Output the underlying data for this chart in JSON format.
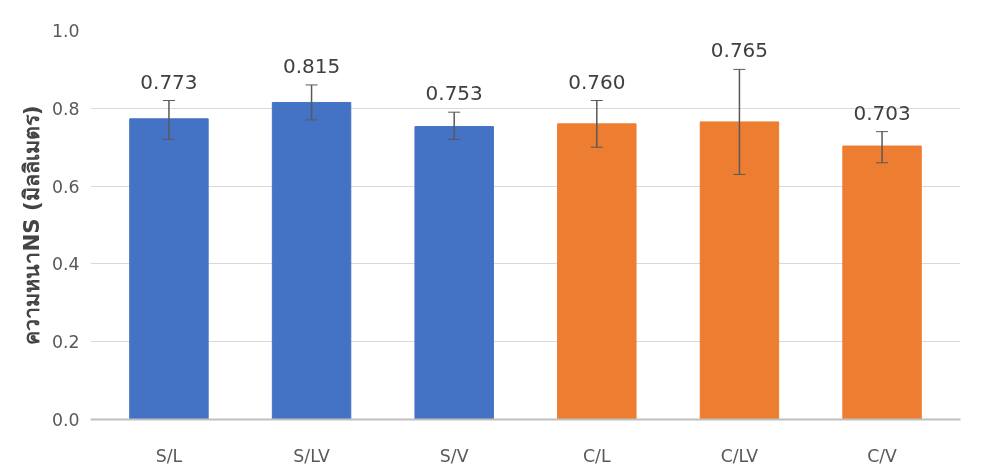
{
  "chart_data": {
    "type": "bar",
    "ylabel": "ความหนาNS (มิลลิเมตร)",
    "categories": [
      "S/L",
      "S/LV",
      "S/V",
      "C/L",
      "C/LV",
      "C/V"
    ],
    "values": [
      0.773,
      0.815,
      0.753,
      0.76,
      0.765,
      0.703
    ],
    "colors": [
      "#4472c4",
      "#4472c4",
      "#4472c4",
      "#ed7d31",
      "#ed7d31",
      "#ed7d31"
    ],
    "errors": [
      [
        0.72,
        0.82
      ],
      [
        0.77,
        0.86
      ],
      [
        0.72,
        0.79
      ],
      [
        0.7,
        0.82
      ],
      [
        0.63,
        0.9
      ],
      [
        0.66,
        0.74
      ]
    ],
    "value_labels": [
      "0.773",
      "0.815",
      "0.753",
      "0.760",
      "0.765",
      "0.703"
    ],
    "ylim": [
      0,
      1.0
    ],
    "yticks": [
      {
        "value": 0,
        "label": "0.0"
      },
      {
        "value": 0.2,
        "label": "0.2"
      },
      {
        "value": 0.4,
        "label": "0.4"
      },
      {
        "value": 0.6,
        "label": "0.6"
      },
      {
        "value": 0.8,
        "label": "0.8"
      },
      {
        "value": 1.0,
        "label": "1.0"
      }
    ],
    "grid": "y"
  }
}
